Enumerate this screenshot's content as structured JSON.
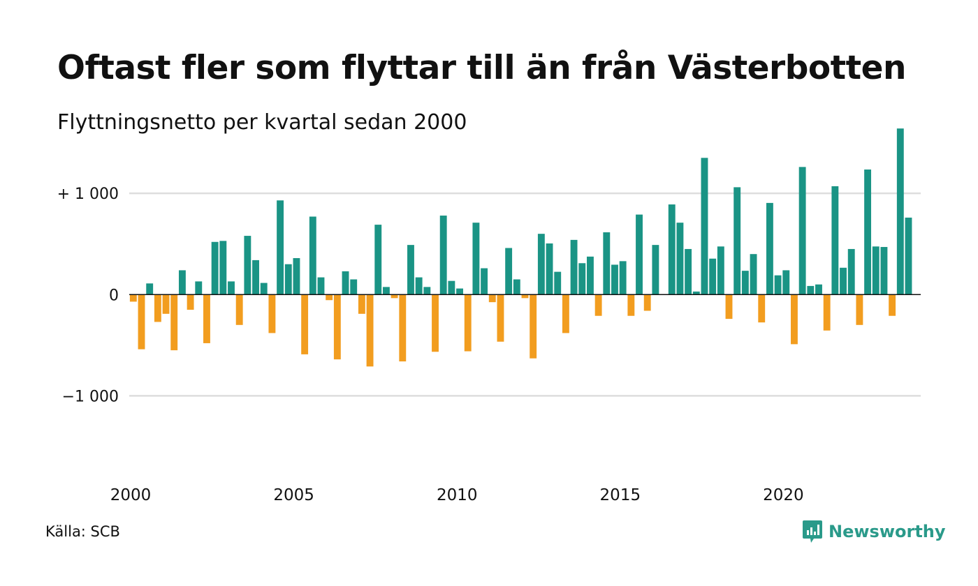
{
  "title": "Oftast fler som flyttar till än från Västerbotten",
  "subtitle": "Flyttningsnetto per kvartal sedan 2000",
  "source": "Källa: SCB",
  "brand": {
    "name": "Newsworthy",
    "icon": "newsworthy-logo-icon"
  },
  "colors": {
    "positive": "#1a9485",
    "negative": "#f29d1f",
    "grid": "#dddddd",
    "zero_line": "#111111"
  },
  "chart_data": {
    "type": "bar",
    "title": "Oftast fler som flyttar till än från Västerbotten",
    "subtitle": "Flyttningsnetto per kvartal sedan 2000",
    "x_start": 2000,
    "x_step_years": 0.25,
    "xlim": [
      2000,
      2024.25
    ],
    "ylim": [
      -1500,
      1600
    ],
    "grid": true,
    "ytick_values": [
      -1000,
      0,
      1000
    ],
    "ytick_labels": [
      "−1 000",
      "0",
      "+ 1 000"
    ],
    "xtick_values": [
      2000,
      2005,
      2010,
      2015,
      2020
    ],
    "xtick_labels": [
      "2000",
      "2005",
      "2010",
      "2015",
      "2020"
    ],
    "values": [
      -70,
      -540,
      110,
      -270,
      -190,
      -550,
      240,
      -150,
      130,
      -480,
      520,
      530,
      130,
      -300,
      580,
      340,
      115,
      -380,
      930,
      300,
      360,
      -590,
      770,
      170,
      -55,
      -640,
      230,
      150,
      -190,
      -710,
      690,
      75,
      -35,
      -660,
      490,
      170,
      75,
      -565,
      780,
      135,
      60,
      -560,
      710,
      260,
      -75,
      -465,
      460,
      150,
      -35,
      -630,
      600,
      505,
      225,
      -380,
      540,
      310,
      375,
      -210,
      615,
      295,
      330,
      -210,
      790,
      -160,
      490,
      0,
      890,
      710,
      450,
      30,
      1350,
      355,
      475,
      -240,
      1060,
      235,
      400,
      -275,
      905,
      190,
      240,
      -490,
      1260,
      85,
      100,
      -355,
      1070,
      265,
      450,
      -300,
      1235,
      475,
      470,
      -210,
      1640,
      760
    ]
  }
}
